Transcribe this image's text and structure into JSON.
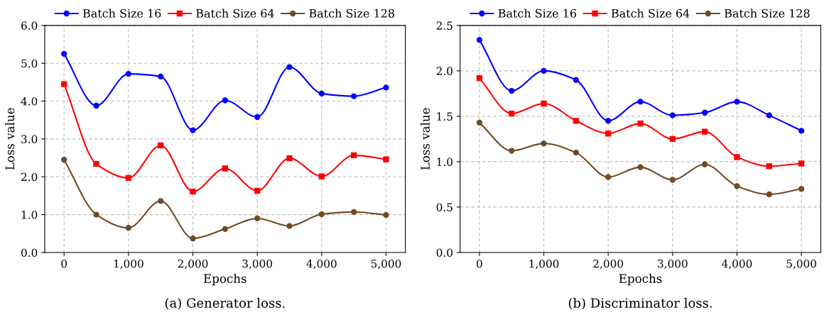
{
  "chart_data": [
    {
      "type": "line",
      "title": "(a) Generator loss.",
      "xlabel": "Epochs",
      "ylabel": "Loss value",
      "x": [
        0,
        500,
        1000,
        1500,
        2000,
        2500,
        3000,
        3500,
        4000,
        4500,
        5000
      ],
      "series": [
        {
          "name": "Batch Size 16",
          "color": "#0000ff",
          "marker": "circle",
          "values": [
            5.25,
            3.88,
            4.72,
            4.65,
            3.23,
            4.02,
            3.58,
            4.9,
            4.2,
            4.13,
            4.36
          ]
        },
        {
          "name": "Batch Size 64",
          "color": "#ff0000",
          "marker": "square",
          "values": [
            4.45,
            2.34,
            1.97,
            2.83,
            1.61,
            2.22,
            1.63,
            2.49,
            2.01,
            2.57,
            2.46
          ]
        },
        {
          "name": "Batch Size 128",
          "color": "#704b25",
          "marker": "circle",
          "values": [
            2.45,
            1.0,
            0.65,
            1.36,
            0.37,
            0.62,
            0.9,
            0.7,
            1.01,
            1.07,
            0.99
          ]
        }
      ],
      "xlim": [
        -300,
        5300
      ],
      "xticks": [
        0,
        {
          "value": 1000,
          "label": "1,000"
        },
        {
          "value": 2000,
          "label": "2,000"
        },
        {
          "value": 3000,
          "label": "3,000"
        },
        {
          "value": 4000,
          "label": "4,000"
        },
        {
          "value": 5000,
          "label": "5,000"
        }
      ],
      "ylim": [
        0,
        6
      ],
      "yticks": [
        {
          "value": 0,
          "label": "0.0"
        },
        {
          "value": 1,
          "label": "1.0"
        },
        {
          "value": 2,
          "label": "2.0"
        },
        {
          "value": 3,
          "label": "3.0"
        },
        {
          "value": 4,
          "label": "4.0"
        },
        {
          "value": 5,
          "label": "5.0"
        },
        {
          "value": 6,
          "label": "6.0"
        }
      ],
      "grid": true,
      "legend": "top",
      "line_style": "solid"
    },
    {
      "type": "line",
      "title": "(b) Discriminator loss.",
      "xlabel": "Epochs",
      "ylabel": "Loss value",
      "x": [
        0,
        500,
        1000,
        1500,
        2000,
        2500,
        3000,
        3500,
        4000,
        4500,
        5000
      ],
      "series": [
        {
          "name": "Batch Size 16",
          "color": "#0000ff",
          "marker": "circle",
          "values": [
            2.34,
            1.78,
            2.0,
            1.9,
            1.45,
            1.66,
            1.51,
            1.54,
            1.66,
            1.51,
            1.34
          ]
        },
        {
          "name": "Batch Size 64",
          "color": "#ff0000",
          "marker": "square",
          "values": [
            1.92,
            1.53,
            1.64,
            1.45,
            1.31,
            1.42,
            1.25,
            1.33,
            1.05,
            0.95,
            0.98
          ]
        },
        {
          "name": "Batch Size 128",
          "color": "#704b25",
          "marker": "circle",
          "values": [
            1.43,
            1.12,
            1.2,
            1.1,
            0.83,
            0.94,
            0.8,
            0.97,
            0.73,
            0.64,
            0.7
          ]
        }
      ],
      "xlim": [
        -300,
        5300
      ],
      "xticks": [
        0,
        {
          "value": 1000,
          "label": "1,000"
        },
        {
          "value": 2000,
          "label": "2,000"
        },
        {
          "value": 3000,
          "label": "3,000"
        },
        {
          "value": 4000,
          "label": "4,000"
        },
        {
          "value": 5000,
          "label": "5,000"
        }
      ],
      "ylim": [
        0,
        2.5
      ],
      "yticks": [
        {
          "value": 0,
          "label": "0.0"
        },
        {
          "value": 0.5,
          "label": "0.5"
        },
        {
          "value": 1,
          "label": "1.0"
        },
        {
          "value": 1.5,
          "label": "1.5"
        },
        {
          "value": 2,
          "label": "2.0"
        },
        {
          "value": 2.5,
          "label": "2.5"
        }
      ],
      "grid": true,
      "legend": "top",
      "line_style": "solid"
    }
  ]
}
